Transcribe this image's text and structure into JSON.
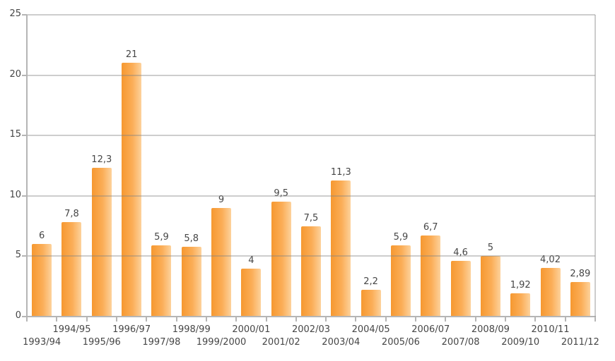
{
  "chart_data": {
    "type": "bar",
    "title": "",
    "xlabel": "",
    "ylabel": "",
    "categories": [
      "1993/94",
      "1994/95",
      "1995/96",
      "1996/97",
      "1997/98",
      "1998/99",
      "1999/2000",
      "2000/01",
      "2001/02",
      "2002/03",
      "2003/04",
      "2004/05",
      "2005/06",
      "2006/07",
      "2007/08",
      "2008/09",
      "2009/10",
      "2010/11",
      "2011/12"
    ],
    "values": [
      6,
      7.8,
      12.3,
      21,
      5.9,
      5.8,
      9,
      4,
      9.5,
      7.5,
      11.3,
      2.2,
      5.9,
      6.7,
      4.6,
      5,
      1.92,
      4.02,
      2.89
    ],
    "value_labels": [
      "6",
      "7,8",
      "12,3",
      "21",
      "5,9",
      "5,8",
      "9",
      "4",
      "9,5",
      "7,5",
      "11,3",
      "2,2",
      "5,9",
      "6,7",
      "4,6",
      "5",
      "1,92",
      "4,02",
      "2,89"
    ],
    "decimal_separator": ",",
    "ylim": [
      0,
      25
    ],
    "yticks": [
      0,
      5,
      10,
      15,
      20,
      25
    ],
    "ytick_labels": [
      "0",
      "5",
      "10",
      "15",
      "20",
      "25"
    ],
    "grid": "horizontal",
    "legend": "none",
    "x_label_layout": "staggered-two-rows",
    "colors": {
      "bar_gradient_left": "#f69830",
      "bar_gradient_mid": "#fbae58",
      "bar_gradient_right": "#fdd29c",
      "gridline": "rgba(130,130,130,0.40)",
      "axis_line": "#b5b5b5",
      "tick": "#b5b5b5",
      "label_text": "#464646",
      "background": "#ffffff"
    }
  }
}
